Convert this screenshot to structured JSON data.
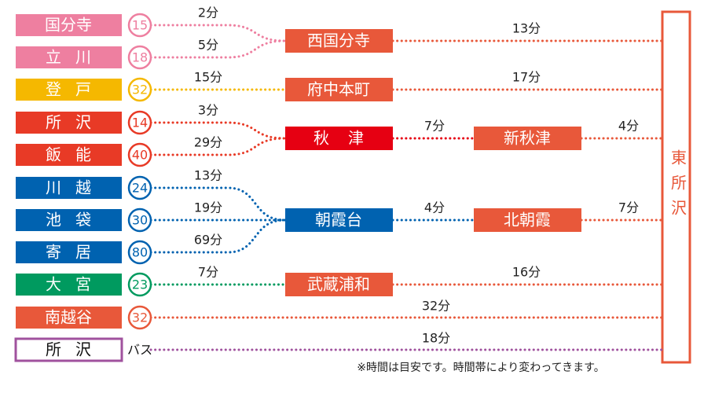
{
  "origins": [
    {
      "name": "国分寺",
      "badge": "15",
      "time": "2分"
    },
    {
      "name": "立川",
      "badge": "18",
      "time": "5分"
    },
    {
      "name": "登戸",
      "badge": "32",
      "time": "15分"
    },
    {
      "name": "所沢",
      "badge": "14",
      "time": "3分"
    },
    {
      "name": "飯能",
      "badge": "40",
      "time": "29分"
    },
    {
      "name": "川越",
      "badge": "24",
      "time": "13分"
    },
    {
      "name": "池袋",
      "badge": "30",
      "time": "19分"
    },
    {
      "name": "寄居",
      "badge": "80",
      "time": "69分"
    },
    {
      "name": "大宮",
      "badge": "23",
      "time": "7分"
    },
    {
      "name": "南越谷",
      "badge": "32",
      "time": "32分"
    },
    {
      "name": "所沢",
      "badge": "バス",
      "time": "18分"
    }
  ],
  "hubs": [
    {
      "name": "西国分寺",
      "time": "13分"
    },
    {
      "name": "府中本町",
      "time": "17分"
    },
    {
      "name": "秋津",
      "time": "7分"
    },
    {
      "name": "朝霞台",
      "time": "4分"
    },
    {
      "name": "武蔵浦和",
      "time": "16分"
    }
  ],
  "transfers": [
    {
      "name": "新秋津",
      "time": "4分"
    },
    {
      "name": "北朝霞",
      "time": "7分"
    }
  ],
  "destination": "東所沢",
  "note": "※時間は目安です。時間帯により変わってきます。"
}
